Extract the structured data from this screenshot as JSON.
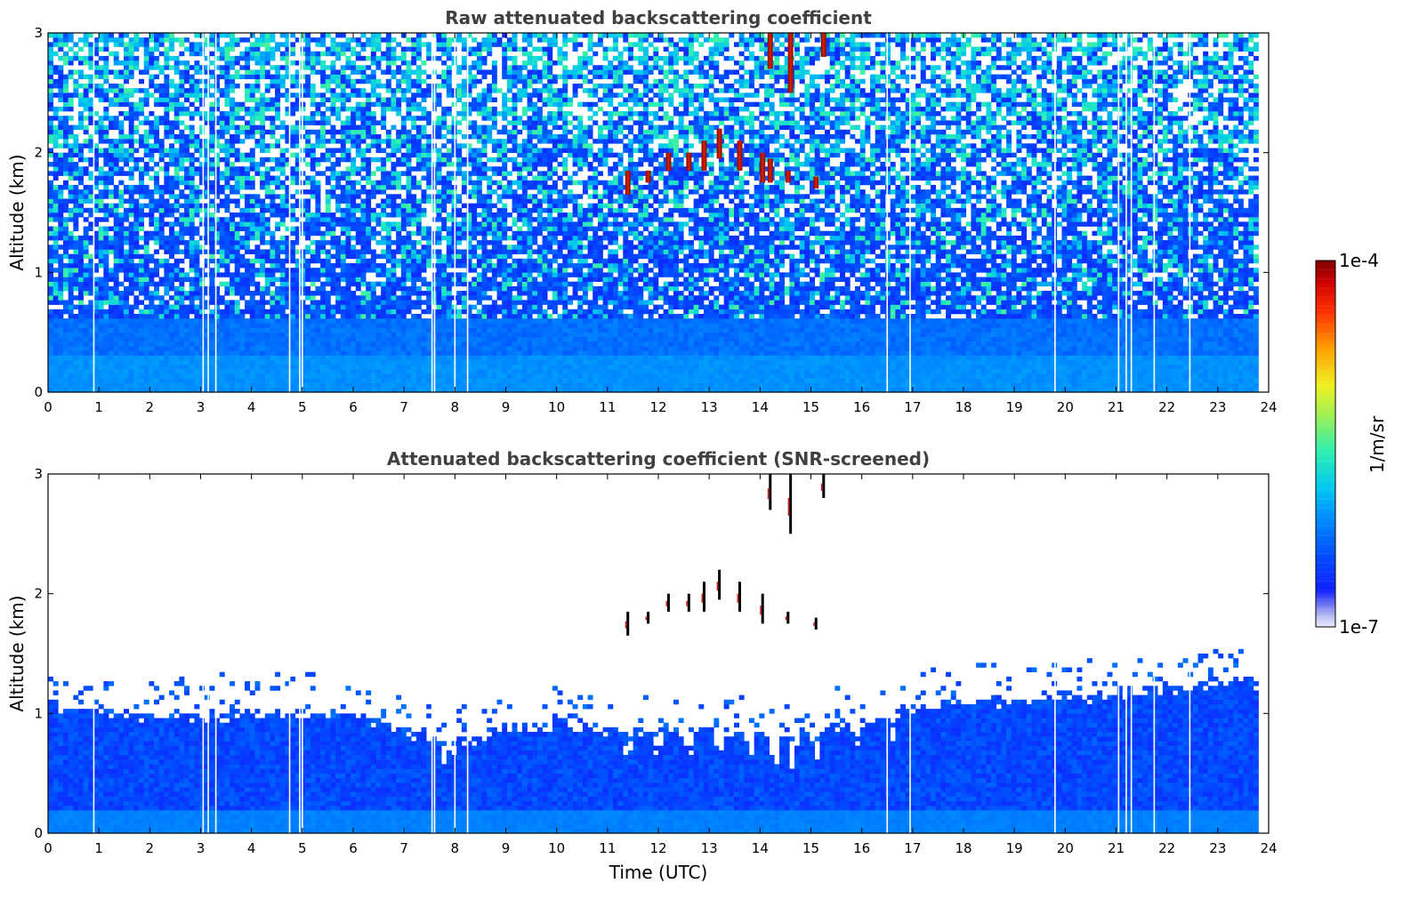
{
  "chart_data": [
    {
      "type": "heatmap",
      "title": "Raw attenuated backscattering coefficient",
      "xlabel": "",
      "ylabel": "Altitude (km)",
      "xlim": [
        0,
        24
      ],
      "ylim": [
        0,
        3
      ],
      "xticks": [
        "0",
        "1",
        "2",
        "3",
        "4",
        "5",
        "6",
        "7",
        "8",
        "9",
        "10",
        "11",
        "12",
        "13",
        "14",
        "15",
        "16",
        "17",
        "18",
        "19",
        "20",
        "21",
        "22",
        "23",
        "24"
      ],
      "yticks": [
        "0",
        "1",
        "2",
        "3"
      ],
      "data_end_hour": 23.8,
      "screened": false,
      "noise_level": "high",
      "gaps_hours": [
        0.9,
        3.05,
        3.15,
        3.3,
        4.75,
        4.95,
        5.0,
        7.55,
        7.6,
        8.0,
        8.25,
        16.5,
        16.95,
        19.8,
        21.05,
        21.2,
        21.3,
        21.75,
        22.45
      ],
      "clouds": [
        {
          "hour": 11.4,
          "base_km": 1.65,
          "top_km": 1.85
        },
        {
          "hour": 11.8,
          "base_km": 1.75,
          "top_km": 1.85
        },
        {
          "hour": 12.2,
          "base_km": 1.85,
          "top_km": 2.0
        },
        {
          "hour": 12.6,
          "base_km": 1.85,
          "top_km": 2.0
        },
        {
          "hour": 12.9,
          "base_km": 1.85,
          "top_km": 2.1
        },
        {
          "hour": 13.2,
          "base_km": 1.95,
          "top_km": 2.2
        },
        {
          "hour": 13.6,
          "base_km": 1.85,
          "top_km": 2.1
        },
        {
          "hour": 14.05,
          "base_km": 1.75,
          "top_km": 2.0
        },
        {
          "hour": 14.2,
          "base_km": 1.75,
          "top_km": 1.95
        },
        {
          "hour": 14.55,
          "base_km": 1.75,
          "top_km": 1.85
        },
        {
          "hour": 15.1,
          "base_km": 1.7,
          "top_km": 1.8
        },
        {
          "hour": 14.2,
          "base_km": 2.7,
          "top_km": 3.0
        },
        {
          "hour": 14.6,
          "base_km": 2.5,
          "top_km": 3.0
        },
        {
          "hour": 15.25,
          "base_km": 2.8,
          "top_km": 3.0
        }
      ]
    },
    {
      "type": "heatmap",
      "title": "Attenuated backscattering coefficient (SNR-screened)",
      "xlabel": "Time (UTC)",
      "ylabel": "Altitude (km)",
      "xlim": [
        0,
        24
      ],
      "ylim": [
        0,
        3
      ],
      "xticks": [
        "0",
        "1",
        "2",
        "3",
        "4",
        "5",
        "6",
        "7",
        "8",
        "9",
        "10",
        "11",
        "12",
        "13",
        "14",
        "15",
        "16",
        "17",
        "18",
        "19",
        "20",
        "21",
        "22",
        "23",
        "24"
      ],
      "yticks": [
        "0",
        "1",
        "2",
        "3"
      ],
      "data_end_hour": 23.8,
      "screened": true,
      "layer_top_km": [
        [
          0,
          1.05
        ],
        [
          1,
          1.0
        ],
        [
          2,
          0.98
        ],
        [
          3,
          0.98
        ],
        [
          4,
          1.0
        ],
        [
          5,
          1.0
        ],
        [
          6,
          0.98
        ],
        [
          7,
          0.85
        ],
        [
          7.6,
          0.8
        ],
        [
          8,
          0.72
        ],
        [
          9,
          0.88
        ],
        [
          10,
          0.9
        ],
        [
          11,
          0.88
        ],
        [
          12,
          0.85
        ],
        [
          13,
          0.85
        ],
        [
          14,
          0.85
        ],
        [
          15,
          0.85
        ],
        [
          16,
          0.95
        ],
        [
          17,
          1.05
        ],
        [
          18,
          1.1
        ],
        [
          19,
          1.1
        ],
        [
          20,
          1.15
        ],
        [
          21,
          1.15
        ],
        [
          22,
          1.2
        ],
        [
          23,
          1.25
        ],
        [
          23.8,
          1.25
        ]
      ],
      "dips": [
        {
          "hour": 7.8,
          "depth_km": 0.6
        },
        {
          "hour": 11.4,
          "depth_km": 0.55
        },
        {
          "hour": 12.0,
          "depth_km": 0.6
        },
        {
          "hour": 12.6,
          "depth_km": 0.6
        },
        {
          "hour": 13.2,
          "depth_km": 0.65
        },
        {
          "hour": 13.8,
          "depth_km": 0.6
        },
        {
          "hour": 14.3,
          "depth_km": 0.5
        },
        {
          "hour": 14.65,
          "depth_km": 0.5
        },
        {
          "hour": 15.1,
          "depth_km": 0.55
        },
        {
          "hour": 15.9,
          "depth_km": 0.7
        },
        {
          "hour": 16.6,
          "depth_km": 0.8
        }
      ],
      "gaps_hours": [
        0.9,
        3.05,
        3.15,
        3.3,
        4.75,
        4.95,
        5.0,
        7.55,
        7.6,
        8.0,
        8.25,
        16.5,
        16.95,
        19.8,
        21.05,
        21.2,
        21.3,
        21.75,
        22.45
      ],
      "clouds": [
        {
          "hour": 11.4,
          "base_km": 1.65,
          "top_km": 1.85
        },
        {
          "hour": 11.8,
          "base_km": 1.75,
          "top_km": 1.85
        },
        {
          "hour": 12.2,
          "base_km": 1.85,
          "top_km": 2.0
        },
        {
          "hour": 12.6,
          "base_km": 1.85,
          "top_km": 2.0
        },
        {
          "hour": 12.9,
          "base_km": 1.85,
          "top_km": 2.1
        },
        {
          "hour": 13.2,
          "base_km": 1.95,
          "top_km": 2.2
        },
        {
          "hour": 13.6,
          "base_km": 1.85,
          "top_km": 2.1
        },
        {
          "hour": 14.05,
          "base_km": 1.75,
          "top_km": 2.0
        },
        {
          "hour": 14.55,
          "base_km": 1.75,
          "top_km": 1.85
        },
        {
          "hour": 15.1,
          "base_km": 1.7,
          "top_km": 1.8
        },
        {
          "hour": 14.2,
          "base_km": 2.7,
          "top_km": 3.0
        },
        {
          "hour": 14.6,
          "base_km": 2.5,
          "top_km": 3.0
        },
        {
          "hour": 15.25,
          "base_km": 2.8,
          "top_km": 3.0
        }
      ]
    }
  ],
  "colorbar": {
    "min_label": "1e-7",
    "max_label": "1e-4",
    "label": "1/m/sr",
    "scale": "log",
    "colormap": "jet"
  }
}
